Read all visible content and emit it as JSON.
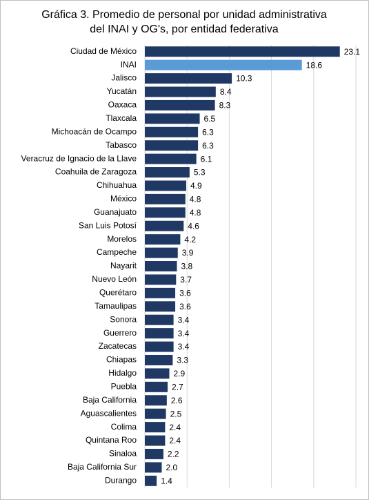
{
  "chart_data": {
    "type": "barh",
    "title": "Gráfica 3. Promedio de personal por unidad administrativa del INAI y OG's, por entidad federativa",
    "categories": [
      "Ciudad de México",
      "INAI",
      "Jalisco",
      "Yucatán",
      "Oaxaca",
      "Tlaxcala",
      "Michoacán de Ocampo",
      "Tabasco",
      "Veracruz de Ignacio de la Llave",
      "Coahuila de Zaragoza",
      "Chihuahua",
      "México",
      "Guanajuato",
      "San Luis Potosí",
      "Morelos",
      "Campeche",
      "Nayarit",
      "Nuevo León",
      "Querétaro",
      "Tamaulipas",
      "Sonora",
      "Guerrero",
      "Zacatecas",
      "Chiapas",
      "Hidalgo",
      "Puebla",
      "Baja California",
      "Aguascalientes",
      "Colima",
      "Quintana Roo",
      "Sinaloa",
      "Baja California Sur",
      "Durango"
    ],
    "values": [
      23.1,
      18.6,
      10.3,
      8.4,
      8.3,
      6.5,
      6.3,
      6.3,
      6.1,
      5.3,
      4.9,
      4.8,
      4.8,
      4.6,
      4.2,
      3.9,
      3.8,
      3.7,
      3.6,
      3.6,
      3.4,
      3.4,
      3.4,
      3.3,
      2.9,
      2.7,
      2.6,
      2.5,
      2.4,
      2.4,
      2.2,
      2.0,
      1.4
    ],
    "value_labels": [
      "23.1",
      "18.6",
      "10.3",
      "8.4",
      "8.3",
      "6.5",
      "6.3",
      "6.3",
      "6.1",
      "5.3",
      "4.9",
      "4.8",
      "4.8",
      "4.6",
      "4.2",
      "3.9",
      "3.8",
      "3.7",
      "3.6",
      "3.6",
      "3.4",
      "3.4",
      "3.4",
      "3.3",
      "2.9",
      "2.7",
      "2.6",
      "2.5",
      "2.4",
      "2.4",
      "2.2",
      "2.0",
      "1.4"
    ],
    "colors": [
      "#203864",
      "#5b9bd5",
      "#203864",
      "#203864",
      "#203864",
      "#203864",
      "#203864",
      "#203864",
      "#203864",
      "#203864",
      "#203864",
      "#203864",
      "#203864",
      "#203864",
      "#203864",
      "#203864",
      "#203864",
      "#203864",
      "#203864",
      "#203864",
      "#203864",
      "#203864",
      "#203864",
      "#203864",
      "#203864",
      "#203864",
      "#203864",
      "#203864",
      "#203864",
      "#203864",
      "#203864",
      "#203864",
      "#203864"
    ],
    "xlim": [
      0,
      25
    ],
    "xticks": [
      0,
      5,
      10,
      15,
      20,
      25
    ],
    "grid": true
  }
}
